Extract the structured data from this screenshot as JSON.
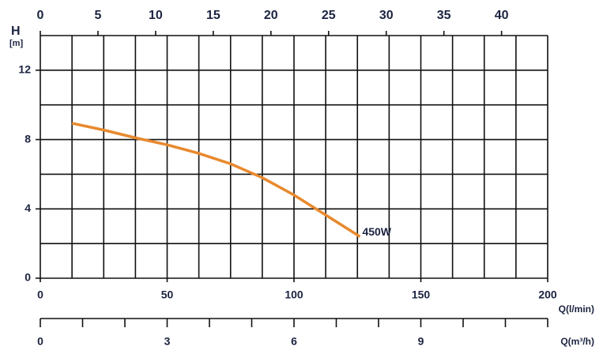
{
  "chart_data": {
    "type": "line",
    "x_label": "Q(l/min)",
    "y_label": "H",
    "y_unit": "[m]",
    "x3_label": "Q(m³/h)",
    "x": [
      12.5,
      25,
      37.5,
      50,
      62.5,
      75,
      87.5,
      100,
      112.5,
      126
    ],
    "series": [
      {
        "name": "450W",
        "color": "#e8892e",
        "values": [
          8.94,
          8.55,
          8.1,
          7.7,
          7.2,
          6.6,
          5.8,
          4.8,
          3.65,
          2.4
        ]
      }
    ],
    "xlim": [
      0,
      200
    ],
    "xticks": [
      0,
      50,
      100,
      150,
      200
    ],
    "ylim": [
      0,
      14
    ],
    "yticks": [
      0,
      4,
      8,
      12
    ],
    "x2lim": [
      0,
      44
    ],
    "x2ticks": [
      0,
      5,
      10,
      15,
      20,
      25,
      30,
      35,
      40
    ],
    "x3lim": [
      0,
      12
    ],
    "x3ticks": [
      0,
      3,
      6,
      9
    ],
    "x3minor": [
      0,
      1,
      2,
      3,
      4,
      5,
      6,
      7,
      8,
      9,
      10,
      11,
      12
    ],
    "xgrid": [
      0,
      12.5,
      25,
      37.5,
      50,
      62.5,
      75,
      87.5,
      100,
      112.5,
      125,
      137.5,
      150,
      162.5,
      175,
      187.5,
      200
    ],
    "ygrid": [
      0,
      2,
      4,
      6,
      8,
      10,
      12,
      14
    ],
    "grid": true
  }
}
